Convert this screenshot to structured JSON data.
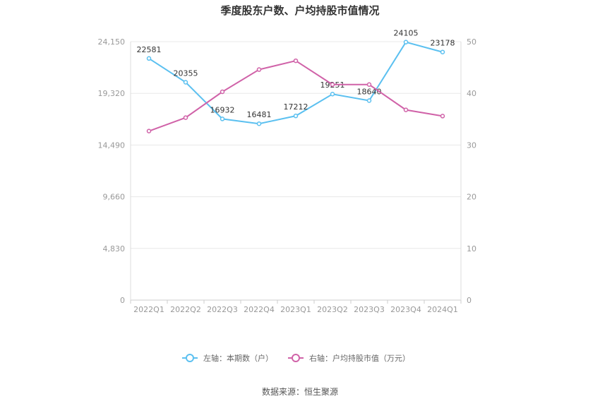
{
  "chart_data": {
    "type": "line",
    "title": "季度股东户数、户均持股市值情况",
    "categories": [
      "2022Q1",
      "2022Q2",
      "2022Q3",
      "2022Q4",
      "2023Q1",
      "2023Q2",
      "2023Q3",
      "2023Q4",
      "2024Q1"
    ],
    "left_axis": {
      "ticks": [
        "0",
        "4,830",
        "9,660",
        "14,490",
        "19,320",
        "24,150"
      ],
      "ylim": [
        0,
        24150
      ]
    },
    "right_axis": {
      "ticks": [
        "0",
        "10",
        "20",
        "30",
        "40",
        "50"
      ],
      "ylim": [
        0,
        50
      ]
    },
    "series": [
      {
        "name": "左轴：本期数（户）",
        "axis": "left",
        "color": "#5bc0f0",
        "values": [
          22581,
          20355,
          16932,
          16481,
          17212,
          19251,
          18640,
          24105,
          23178
        ],
        "labels": [
          "22581",
          "20355",
          "16932",
          "16481",
          "17212",
          "19251",
          "18640",
          "24105",
          "23178"
        ]
      },
      {
        "name": "右轴：户均持股市值（万元）",
        "axis": "right",
        "color": "#d062a8",
        "values": [
          32.7,
          35.3,
          40.3,
          44.6,
          46.3,
          41.7,
          41.7,
          36.8,
          35.6
        ]
      }
    ],
    "grid": true,
    "legend": "bottom-center"
  },
  "source": "数据来源：恒生聚源"
}
